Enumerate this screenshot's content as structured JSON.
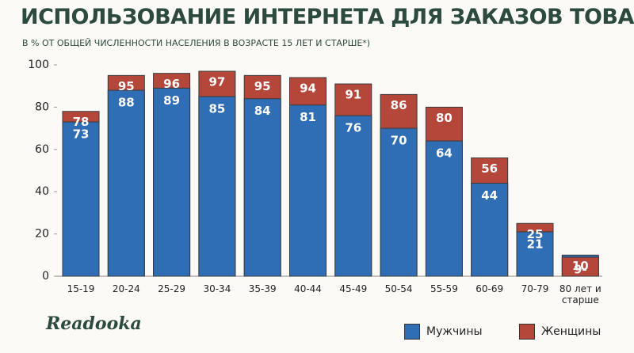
{
  "title": "ИСПОЛЬЗОВАНИЕ ИНТЕРНЕТА ДЛЯ ЗАКАЗОВ ТОВАРОВ И УСЛУГ",
  "logo": "Readooka",
  "chart_data": {
    "type": "overlap-bar",
    "subtitle": "В % ОТ ОБЩЕЙ ЧИСЛЕННОСТИ НАСЕЛЕНИЯ В ВОЗРАСТЕ 15 ЛЕТ И СТАРШЕ*)",
    "categories": [
      "15-19",
      "20-24",
      "25-29",
      "30-34",
      "35-39",
      "40-44",
      "45-49",
      "50-54",
      "55-59",
      "60-69",
      "70-79",
      "80 лет и старше"
    ],
    "series": [
      {
        "name": "Мужчины",
        "color": "#2f6db5",
        "values": [
          73,
          88,
          89,
          85,
          84,
          81,
          76,
          70,
          64,
          44,
          21,
          10
        ]
      },
      {
        "name": "Женщины",
        "color": "#b4463a",
        "values": [
          78,
          95,
          96,
          97,
          95,
          94,
          91,
          86,
          80,
          56,
          25,
          9
        ],
        "value_labels": [
          "78",
          "95",
          "96",
          "97",
          "95",
          "94",
          "91",
          "86",
          "80",
          "56",
          "25",
          "9-"
        ]
      }
    ],
    "ylim": [
      0,
      100
    ],
    "yticks": [
      0,
      20,
      40,
      60,
      80,
      100
    ],
    "legend": "bottom-right"
  }
}
